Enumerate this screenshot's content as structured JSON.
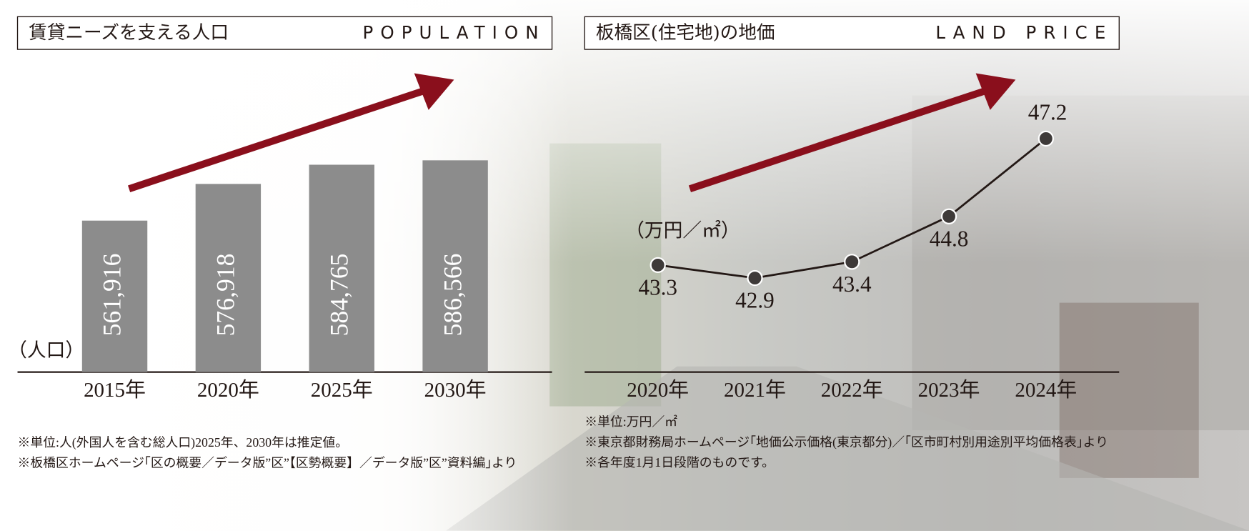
{
  "chart_data": [
    {
      "type": "bar",
      "title": "賃貸ニーズを支える人口",
      "subtitle": "POPULATION",
      "y_label": "（人口）",
      "categories": [
        "2015年",
        "2020年",
        "2025年",
        "2030年"
      ],
      "values": [
        561916,
        576918,
        584765,
        586566
      ],
      "value_labels": [
        "561,916",
        "576,918",
        "584,765",
        "586,566"
      ],
      "color": "#8c8c8c",
      "ylim": [
        500000,
        600000
      ],
      "notes": [
        "※単位:人(外国人を含む総人口)2025年、2030年は推定値。",
        "※板橋区ホームページ｢区の概要／データ版”区”【区勢概要】／データ版”区”資料編｣より"
      ]
    },
    {
      "type": "line",
      "title": "板橋区(住宅地)の地価",
      "subtitle": "LAND PRICE",
      "y_label": "（万円／㎡）",
      "categories": [
        "2020年",
        "2021年",
        "2022年",
        "2023年",
        "2024年"
      ],
      "values": [
        43.3,
        42.9,
        43.4,
        44.8,
        47.2
      ],
      "color": "#231815",
      "ylim": [
        40,
        48
      ],
      "notes": [
        "※単位:万円／㎡",
        "※東京都財務局ホームページ｢地価公示価格(東京都分)／｢区市町村別用途別平均価格表｣より",
        "※各年度1月1日段階のものです。"
      ]
    }
  ]
}
